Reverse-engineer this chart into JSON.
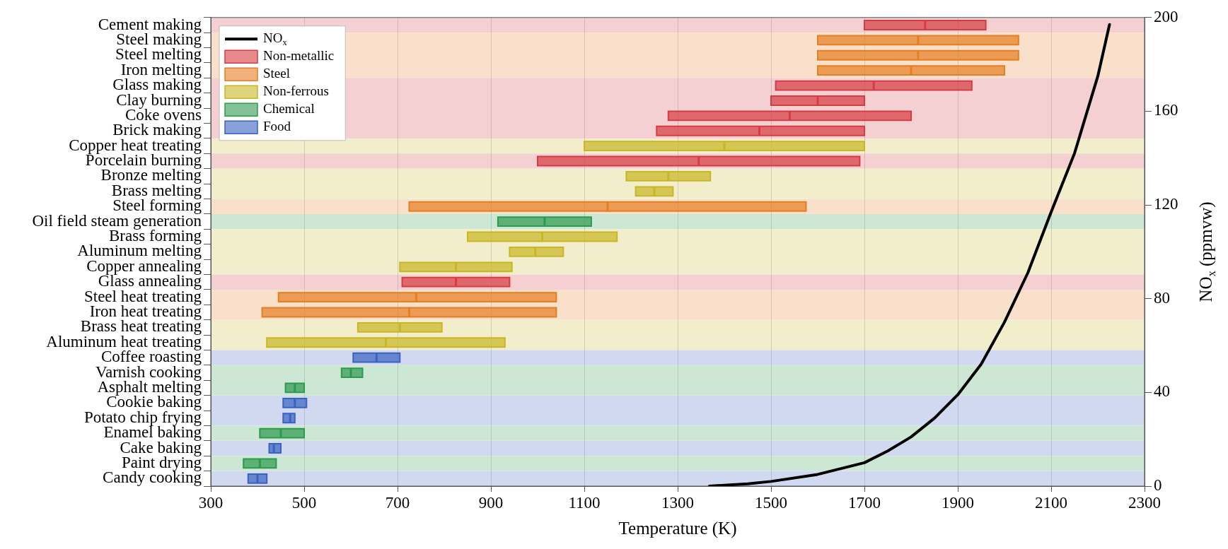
{
  "chart_data": [
    {
      "type": "box",
      "orientation": "horizontal",
      "legend": "top left",
      "grid": "x",
      "tick_labels": "y",
      "bands": [
        {
          "axis": "y",
          "from": "Cement making",
          "to": "Cement making",
          "color": "#f5d0d2"
        },
        {
          "axis": "y",
          "from": "Steel making",
          "to": "Iron melting",
          "color": "#f9e0ca"
        },
        {
          "axis": "y",
          "from": "Glass making",
          "to": "Brick making",
          "color": "#f5d0d2"
        },
        {
          "axis": "y",
          "from": "Copper heat treating",
          "to": "Copper heat treating",
          "color": "#f2eecb"
        },
        {
          "axis": "y",
          "from": "Porcelain burning",
          "to": "Porcelain burning",
          "color": "#f5d0d2"
        },
        {
          "axis": "y",
          "from": "Bronze melting",
          "to": "Brass melting",
          "color": "#f2eecb"
        },
        {
          "axis": "y",
          "from": "Steel forming",
          "to": "Steel forming",
          "color": "#f9e0ca"
        },
        {
          "axis": "y",
          "from": "Oil field steam generation",
          "to": "Oil field steam generation",
          "color": "#cde7d5"
        },
        {
          "axis": "y",
          "from": "Brass forming",
          "to": "Copper annealing",
          "color": "#f2eecb"
        },
        {
          "axis": "y",
          "from": "Glass annealing",
          "to": "Glass annealing",
          "color": "#f5d0d2"
        },
        {
          "axis": "y",
          "from": "Steel heat treating",
          "to": "Iron heat treating",
          "color": "#f9e0ca"
        },
        {
          "axis": "y",
          "from": "Brass heat treating",
          "to": "Aluminum heat treating",
          "color": "#f2eecb"
        },
        {
          "axis": "y",
          "from": "Coffee roasting",
          "to": "Coffee roasting",
          "color": "#d0d9f0"
        },
        {
          "axis": "y",
          "from": "Varnish cooking",
          "to": "Asphalt melting",
          "color": "#cde7d5"
        },
        {
          "axis": "y",
          "from": "Cookie baking",
          "to": "Potato chip frying",
          "color": "#d0d9f0"
        },
        {
          "axis": "y",
          "from": "Enamel baking",
          "to": "Enamel baking",
          "color": "#cde7d5"
        },
        {
          "axis": "y",
          "from": "Cake baking",
          "to": "Cake baking",
          "color": "#d0d9f0"
        },
        {
          "axis": "y",
          "from": "Paint drying",
          "to": "Paint drying",
          "color": "#cde7d5"
        },
        {
          "axis": "y",
          "from": "Candy cooking",
          "to": "Candy cooking",
          "color": "#d0d9f0"
        }
      ],
      "categories": [
        "Cement making",
        "Steel making",
        "Steel melting",
        "Iron melting",
        "Glass making",
        "Clay burning",
        "Coke ovens",
        "Brick making",
        "Copper heat treating",
        "Porcelain burning",
        "Bronze melting",
        "Brass melting",
        "Steel forming",
        "Oil field steam generation",
        "Brass forming",
        "Aluminum melting",
        "Copper annealing",
        "Glass annealing",
        "Steel heat treating",
        "Iron heat treating",
        "Brass heat treating",
        "Aluminum heat treating",
        "Coffee roasting",
        "Varnish cooking",
        "Asphalt melting",
        "Cookie baking",
        "Potato chip frying",
        "Enamel baking",
        "Cake baking",
        "Paint drying",
        "Candy cooking"
      ],
      "xlim": [
        300,
        2300
      ],
      "xticks": [
        300,
        500,
        700,
        900,
        1100,
        1300,
        1500,
        1700,
        1900,
        2100,
        2300
      ],
      "series": [
        {
          "name": "Non-metallic",
          "color": "#d63c42",
          "boxes": [
            {
              "low": 1700,
              "q1": 1700,
              "median": 1830,
              "q3": 1960,
              "high": 1960
            },
            null,
            null,
            null,
            {
              "low": 1510,
              "q1": 1510,
              "median": 1720,
              "q3": 1930,
              "high": 1930
            },
            {
              "low": 1500,
              "q1": 1500,
              "median": 1600,
              "q3": 1700,
              "high": 1700
            },
            {
              "low": 1280,
              "q1": 1280,
              "median": 1540,
              "q3": 1800,
              "high": 1800
            },
            {
              "low": 1255,
              "q1": 1255,
              "median": 1475,
              "q3": 1700,
              "high": 1700
            },
            null,
            {
              "low": 1000,
              "q1": 1000,
              "median": 1345,
              "q3": 1690,
              "high": 1690
            },
            null,
            null,
            null,
            null,
            null,
            null,
            null,
            {
              "low": 710,
              "q1": 710,
              "median": 825,
              "q3": 940,
              "high": 940
            },
            null,
            null,
            null,
            null,
            null,
            null,
            null,
            null,
            null,
            null,
            null,
            null,
            null
          ]
        },
        {
          "name": "Steel",
          "color": "#e67e22",
          "boxes": [
            null,
            {
              "low": 1600,
              "q1": 1600,
              "median": 1815,
              "q3": 2030,
              "high": 2030
            },
            {
              "low": 1600,
              "q1": 1600,
              "median": 1815,
              "q3": 2030,
              "high": 2030
            },
            {
              "low": 1600,
              "q1": 1600,
              "median": 1800,
              "q3": 2000,
              "high": 2000
            },
            null,
            null,
            null,
            null,
            null,
            null,
            null,
            null,
            {
              "low": 725,
              "q1": 725,
              "median": 1150,
              "q3": 1575,
              "high": 1575
            },
            null,
            null,
            null,
            null,
            null,
            {
              "low": 445,
              "q1": 445,
              "median": 740,
              "q3": 1040,
              "high": 1040
            },
            {
              "low": 410,
              "q1": 410,
              "median": 725,
              "q3": 1040,
              "high": 1040
            },
            null,
            null,
            null,
            null,
            null,
            null,
            null,
            null,
            null,
            null,
            null
          ]
        },
        {
          "name": "Non-ferrous",
          "color": "#c9b624",
          "boxes": [
            null,
            null,
            null,
            null,
            null,
            null,
            null,
            null,
            {
              "low": 1100,
              "q1": 1100,
              "median": 1400,
              "q3": 1700,
              "high": 1700
            },
            null,
            {
              "low": 1190,
              "q1": 1190,
              "median": 1280,
              "q3": 1370,
              "high": 1370
            },
            {
              "low": 1210,
              "q1": 1210,
              "median": 1250,
              "q3": 1290,
              "high": 1290
            },
            null,
            null,
            {
              "low": 850,
              "q1": 850,
              "median": 1010,
              "q3": 1170,
              "high": 1170
            },
            {
              "low": 940,
              "q1": 940,
              "median": 995,
              "q3": 1055,
              "high": 1055
            },
            {
              "low": 705,
              "q1": 705,
              "median": 825,
              "q3": 945,
              "high": 945
            },
            null,
            null,
            null,
            {
              "low": 615,
              "q1": 615,
              "median": 705,
              "q3": 795,
              "high": 795
            },
            {
              "low": 420,
              "q1": 420,
              "median": 675,
              "q3": 930,
              "high": 930
            },
            null,
            null,
            null,
            null,
            null,
            null,
            null,
            null,
            null
          ]
        },
        {
          "name": "Chemical",
          "color": "#2e9a4e",
          "boxes": [
            null,
            null,
            null,
            null,
            null,
            null,
            null,
            null,
            null,
            null,
            null,
            null,
            null,
            {
              "low": 915,
              "q1": 915,
              "median": 1015,
              "q3": 1115,
              "high": 1115
            },
            null,
            null,
            null,
            null,
            null,
            null,
            null,
            null,
            null,
            {
              "low": 580,
              "q1": 580,
              "median": 600,
              "q3": 625,
              "high": 625
            },
            {
              "low": 460,
              "q1": 460,
              "median": 480,
              "q3": 500,
              "high": 500
            },
            null,
            null,
            {
              "low": 405,
              "q1": 405,
              "median": 450,
              "q3": 500,
              "high": 500
            },
            null,
            {
              "low": 370,
              "q1": 370,
              "median": 405,
              "q3": 440,
              "high": 440
            },
            null
          ]
        },
        {
          "name": "Food",
          "color": "#3a62c2",
          "boxes": [
            null,
            null,
            null,
            null,
            null,
            null,
            null,
            null,
            null,
            null,
            null,
            null,
            null,
            null,
            null,
            null,
            null,
            null,
            null,
            null,
            null,
            null,
            {
              "low": 605,
              "q1": 605,
              "median": 655,
              "q3": 705,
              "high": 705
            },
            null,
            null,
            {
              "low": 455,
              "q1": 455,
              "median": 480,
              "q3": 505,
              "high": 505
            },
            {
              "low": 455,
              "q1": 455,
              "median": 470,
              "q3": 480,
              "high": 480
            },
            null,
            {
              "low": 425,
              "q1": 425,
              "median": 435,
              "q3": 450,
              "high": 450
            },
            null,
            {
              "low": 380,
              "q1": 380,
              "median": 400,
              "q3": 420,
              "high": 420
            }
          ]
        }
      ]
    },
    {
      "type": "line",
      "xlabel": "Temperature (K)",
      "y2label": "NO$_{x}$ (ppmvw)",
      "legend": "top left",
      "xlim": [
        300,
        2300
      ],
      "xticks": [
        300,
        500,
        700,
        900,
        1100,
        1300,
        1500,
        1700,
        1900,
        2100,
        2300
      ],
      "y2lim": [
        0,
        200
      ],
      "y2ticks": [
        0,
        40,
        80,
        120,
        160,
        200
      ],
      "series": [
        {
          "name": "NO$_{x}$",
          "axis": "y2",
          "color": "#000000",
          "x": [
            1368,
            1450,
            1500,
            1600,
            1700,
            1750,
            1800,
            1850,
            1900,
            1950,
            2000,
            2050,
            2100,
            2150,
            2200,
            2225
          ],
          "values": [
            0,
            1,
            2,
            5,
            10,
            15,
            21,
            29,
            39,
            52,
            70,
            91,
            117,
            142,
            175,
            197
          ]
        }
      ]
    }
  ]
}
